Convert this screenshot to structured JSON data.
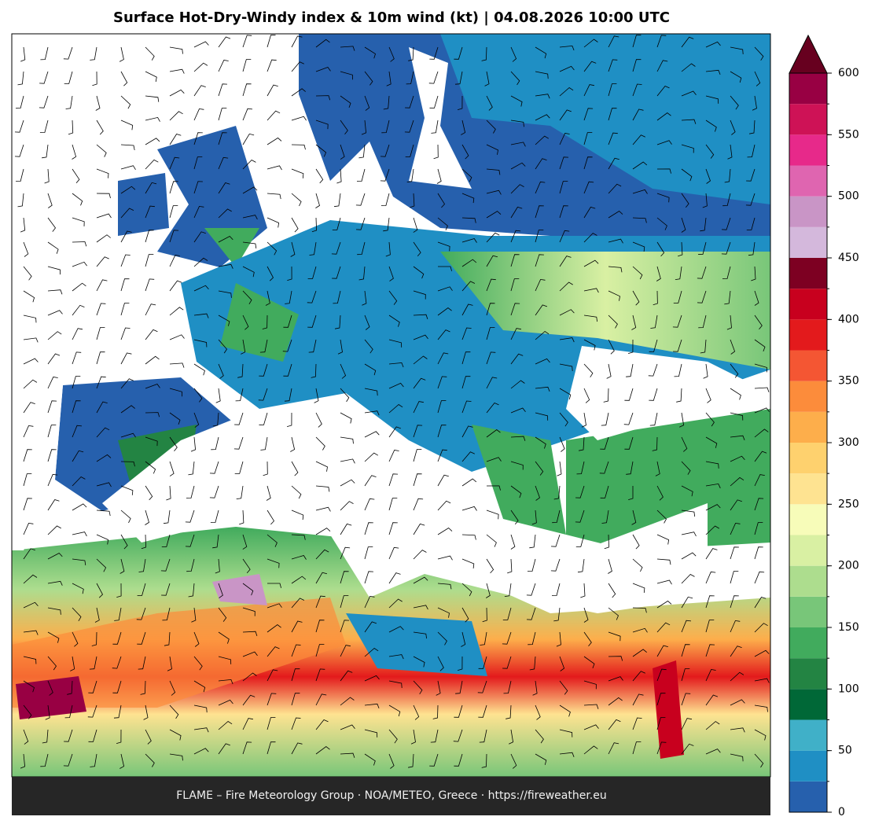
{
  "title": "Surface Hot-Dry-Windy index & 10m wind (kt)  |  04.08.2026 10:00 UTC",
  "footer": "FLAME – Fire Meteorology Group · NOA/METEO, Greece · https://fireweather.eu",
  "colorbar": {
    "lim": [
      0,
      600
    ],
    "ticks": [
      0,
      50,
      100,
      150,
      200,
      250,
      300,
      350,
      400,
      450,
      500,
      550,
      600
    ],
    "levels": [
      0,
      25,
      50,
      75,
      100,
      125,
      150,
      175,
      200,
      225,
      250,
      275,
      300,
      325,
      350,
      375,
      400,
      425,
      450,
      475,
      500,
      525,
      550,
      575,
      600
    ],
    "colors": [
      "#2660ad",
      "#1f8fc4",
      "#40b0c8",
      "#006837",
      "#238443",
      "#41ab5d",
      "#78c679",
      "#addd8e",
      "#d9f0a3",
      "#f7fcb9",
      "#fee391",
      "#fed16e",
      "#fdae4b",
      "#fc8c3b",
      "#f45633",
      "#e31a1c",
      "#c8001e",
      "#7d0022",
      "#d4b8dc",
      "#c995c6",
      "#df65b0",
      "#e7298a",
      "#ce1256",
      "#980043"
    ],
    "extend_color": "#67001f"
  }
}
